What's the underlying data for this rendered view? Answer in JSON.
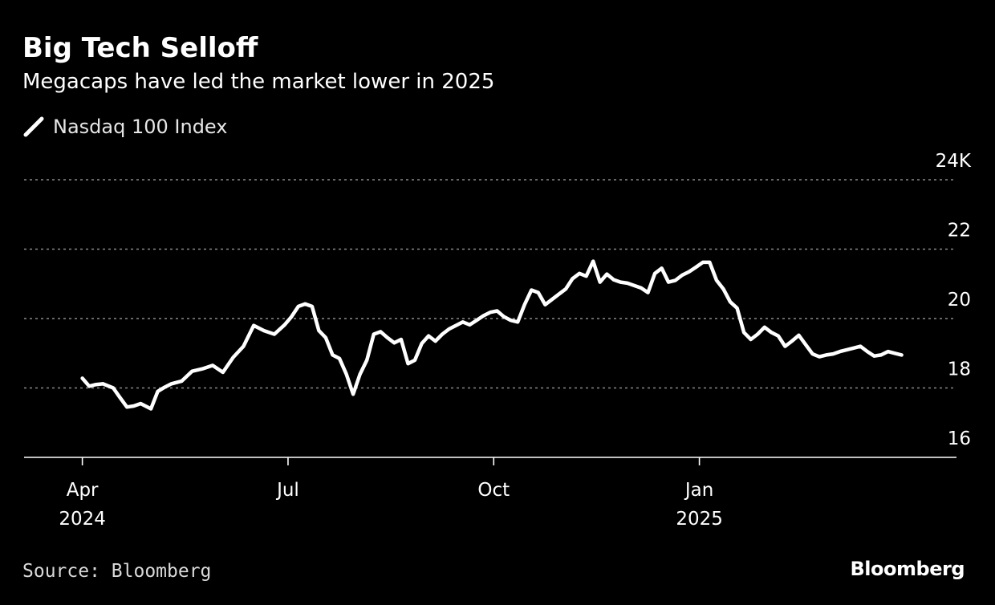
{
  "header": {
    "title": "Big Tech Selloff",
    "subtitle": "Megacaps have led the market lower in 2025"
  },
  "legend": {
    "label": "Nasdaq 100 Index",
    "icon": "line-swatch-icon"
  },
  "footer": {
    "source": "Source: Bloomberg",
    "brand": "Bloomberg"
  },
  "colors": {
    "background": "#000000",
    "line": "#ffffff",
    "grid": "#8a8a8a",
    "axis": "#ffffff"
  },
  "chart_data": {
    "type": "line",
    "title": "Big Tech Selloff",
    "subtitle": "Megacaps have led the market lower in 2025",
    "xlabel": "",
    "ylabel": "",
    "ylim": [
      16,
      24
    ],
    "xlim": [
      -0.85,
      12.75
    ],
    "grid": true,
    "legend_position": "top-left",
    "y_ticks": [
      {
        "value": 24,
        "label": "24K"
      },
      {
        "value": 22,
        "label": "22"
      },
      {
        "value": 20,
        "label": "20"
      },
      {
        "value": 18,
        "label": "18"
      },
      {
        "value": 16,
        "label": "16"
      }
    ],
    "x_ticks": [
      {
        "value": 0,
        "label": "Apr",
        "sublabel": "2024"
      },
      {
        "value": 3,
        "label": "Jul",
        "sublabel": ""
      },
      {
        "value": 6,
        "label": "Oct",
        "sublabel": ""
      },
      {
        "value": 9,
        "label": "Jan",
        "sublabel": "2025"
      }
    ],
    "x_unit": "months since Apr 1, 2024",
    "series": [
      {
        "name": "Nasdaq 100 Index",
        "x": [
          0,
          0.1,
          0.2,
          0.3,
          0.45,
          0.55,
          0.65,
          0.75,
          0.85,
          1.0,
          1.1,
          1.2,
          1.3,
          1.45,
          1.6,
          1.75,
          1.9,
          2.05,
          2.2,
          2.35,
          2.5,
          2.65,
          2.8,
          2.95,
          3.05,
          3.15,
          3.25,
          3.35,
          3.45,
          3.55,
          3.65,
          3.75,
          3.85,
          3.95,
          4.05,
          4.15,
          4.25,
          4.35,
          4.45,
          4.55,
          4.65,
          4.75,
          4.85,
          4.95,
          5.05,
          5.15,
          5.25,
          5.35,
          5.45,
          5.55,
          5.65,
          5.75,
          5.85,
          5.95,
          6.05,
          6.15,
          6.25,
          6.35,
          6.45,
          6.55,
          6.65,
          6.75,
          6.85,
          6.95,
          7.05,
          7.15,
          7.25,
          7.35,
          7.45,
          7.55,
          7.65,
          7.75,
          7.85,
          7.95,
          8.05,
          8.15,
          8.25,
          8.35,
          8.45,
          8.55,
          8.65,
          8.75,
          8.85,
          8.95,
          9.05,
          9.15,
          9.25,
          9.35,
          9.45,
          9.55,
          9.65,
          9.75,
          9.85,
          9.95,
          10.05,
          10.15,
          10.25,
          10.35,
          10.45,
          10.55,
          10.65,
          10.75,
          10.85,
          10.95,
          11.05,
          11.15,
          11.25,
          11.35,
          11.45,
          11.55,
          11.65,
          11.75,
          11.85,
          11.95
        ],
        "values": [
          18.28,
          18.05,
          18.1,
          18.12,
          18.0,
          17.72,
          17.45,
          17.48,
          17.55,
          17.4,
          17.9,
          18.02,
          18.12,
          18.2,
          18.48,
          18.55,
          18.65,
          18.45,
          18.88,
          19.2,
          19.8,
          19.65,
          19.55,
          19.82,
          20.05,
          20.35,
          20.42,
          20.35,
          19.65,
          19.45,
          18.95,
          18.85,
          18.4,
          17.82,
          18.4,
          18.8,
          19.55,
          19.62,
          19.45,
          19.3,
          19.4,
          18.7,
          18.8,
          19.28,
          19.5,
          19.35,
          19.55,
          19.7,
          19.8,
          19.9,
          19.82,
          19.95,
          20.08,
          20.18,
          20.22,
          20.05,
          19.95,
          19.9,
          20.4,
          20.82,
          20.75,
          20.4,
          20.55,
          20.7,
          20.85,
          21.15,
          21.3,
          21.22,
          21.65,
          21.05,
          21.28,
          21.12,
          21.05,
          21.02,
          20.95,
          20.88,
          20.75,
          21.3,
          21.45,
          21.05,
          21.1,
          21.25,
          21.35,
          21.48,
          21.62,
          21.62,
          21.1,
          20.85,
          20.48,
          20.3,
          19.6,
          19.4,
          19.55,
          19.75,
          19.6,
          19.5,
          19.2,
          19.35,
          19.52,
          19.25,
          18.98,
          18.9,
          18.95,
          18.98,
          19.05,
          19.1,
          19.15,
          19.2,
          19.05,
          18.92,
          18.95,
          19.05,
          19.0,
          18.95
        ]
      }
    ]
  }
}
